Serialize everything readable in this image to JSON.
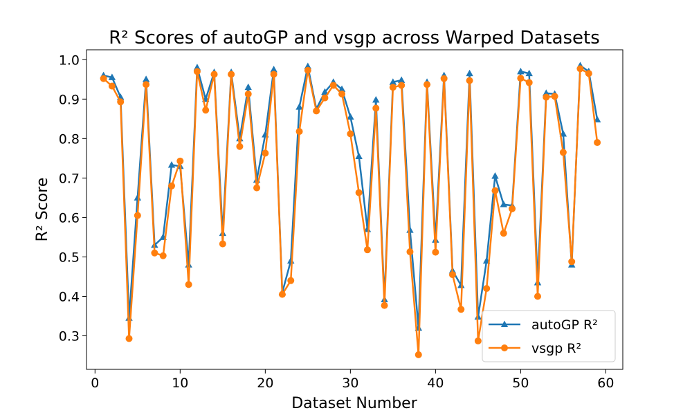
{
  "chart_data": {
    "type": "line",
    "title": "R² Scores of autoGP and vsgp across Warped Datasets",
    "xlabel": "Dataset Number",
    "ylabel": "R² Score",
    "xlim": [
      -1,
      62
    ],
    "ylim": [
      0.215,
      1.025
    ],
    "xticks": [
      0,
      10,
      20,
      30,
      40,
      50,
      60
    ],
    "yticks": [
      0.3,
      0.4,
      0.5,
      0.6,
      0.7,
      0.8,
      0.9,
      1.0
    ],
    "xtick_labels": [
      "0",
      "10",
      "20",
      "30",
      "40",
      "50",
      "60"
    ],
    "ytick_labels": [
      "0.3",
      "0.4",
      "0.5",
      "0.6",
      "0.7",
      "0.8",
      "0.9",
      "1.0"
    ],
    "grid": false,
    "legend_position": "bottom-right",
    "x": [
      1,
      2,
      3,
      4,
      5,
      6,
      7,
      8,
      9,
      10,
      11,
      12,
      13,
      14,
      15,
      16,
      17,
      18,
      19,
      20,
      21,
      22,
      23,
      24,
      25,
      26,
      27,
      28,
      29,
      30,
      31,
      32,
      33,
      34,
      35,
      36,
      37,
      38,
      39,
      40,
      41,
      42,
      43,
      44,
      45,
      46,
      47,
      48,
      49,
      50,
      51,
      52,
      53,
      54,
      55,
      56,
      57,
      58,
      59
    ],
    "series": [
      {
        "name": "autoGP R²",
        "color": "#1f77b4",
        "marker": "triangle",
        "values": [
          0.96,
          0.955,
          0.905,
          0.345,
          0.65,
          0.95,
          0.53,
          0.55,
          0.733,
          0.73,
          0.48,
          0.98,
          0.9,
          0.968,
          0.56,
          0.968,
          0.8,
          0.93,
          0.695,
          0.81,
          0.975,
          0.41,
          0.49,
          0.88,
          0.983,
          0.875,
          0.918,
          0.943,
          0.925,
          0.855,
          0.755,
          0.57,
          0.898,
          0.392,
          0.943,
          0.948,
          0.568,
          0.32,
          0.943,
          0.543,
          0.96,
          0.465,
          0.428,
          0.965,
          0.348,
          0.49,
          0.705,
          0.633,
          0.63,
          0.97,
          0.965,
          0.435,
          0.915,
          0.913,
          0.812,
          0.48,
          0.985,
          0.97,
          0.848
        ]
      },
      {
        "name": "vsgp R²",
        "color": "#ff7f0e",
        "marker": "circle",
        "values": [
          0.952,
          0.933,
          0.893,
          0.293,
          0.605,
          0.937,
          0.51,
          0.503,
          0.68,
          0.743,
          0.43,
          0.97,
          0.872,
          0.963,
          0.533,
          0.963,
          0.78,
          0.913,
          0.675,
          0.763,
          0.963,
          0.405,
          0.44,
          0.818,
          0.973,
          0.87,
          0.903,
          0.935,
          0.913,
          0.812,
          0.663,
          0.518,
          0.877,
          0.377,
          0.93,
          0.935,
          0.513,
          0.252,
          0.937,
          0.512,
          0.952,
          0.455,
          0.367,
          0.947,
          0.287,
          0.42,
          0.668,
          0.56,
          0.622,
          0.953,
          0.942,
          0.4,
          0.905,
          0.907,
          0.765,
          0.488,
          0.977,
          0.965,
          0.79
        ]
      }
    ]
  }
}
